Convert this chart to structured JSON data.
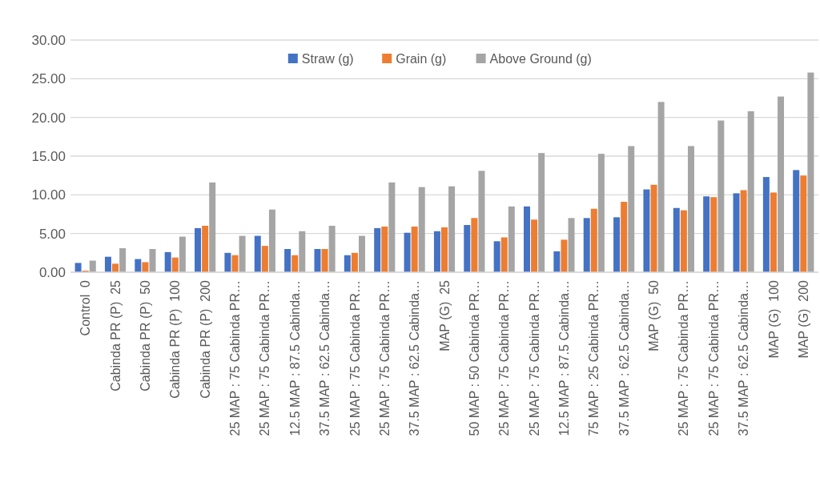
{
  "chart_data": {
    "type": "bar",
    "categories": [
      "Control  0",
      "Cabinda PR (P)  25",
      "Cabinda PR (P)  50",
      "Cabinda PR (P)  100",
      "Cabinda PR (P)  200",
      "25 MAP : 75 Cabinda PR…",
      "25 MAP : 75 Cabinda PR…",
      "12.5 MAP : 87.5 Cabinda…",
      "37.5 MAP : 62.5 Cabinda…",
      "25 MAP : 75 Cabinda PR…",
      "25 MAP : 75 Cabinda PR…",
      "37.5 MAP : 62.5 Cabinda…",
      "MAP (G)  25",
      "50 MAP : 50 Cabinda PR…",
      "25 MAP : 75 Cabinda PR…",
      "25 MAP : 75 Cabinda PR…",
      "12.5 MAP : 87.5 Cabinda…",
      "75 MAP : 25 Cabinda PR…",
      "37.5 MAP : 62.5 Cabinda…",
      "MAP (G)  50",
      "25 MAP : 75 Cabinda PR…",
      "25 MAP : 75 Cabinda PR…",
      "37.5 MAP : 62.5 Cabinda…",
      "MAP (G)  100",
      "MAP (G)  200"
    ],
    "series": [
      {
        "name": "Straw (g)",
        "color": "#4472c4",
        "values": [
          1.2,
          2.0,
          1.7,
          2.6,
          5.7,
          2.5,
          4.7,
          3.0,
          3.0,
          2.2,
          5.7,
          5.1,
          5.3,
          6.1,
          4.0,
          8.5,
          2.7,
          7.0,
          7.1,
          10.7,
          8.3,
          9.8,
          10.2,
          12.3,
          13.2
        ]
      },
      {
        "name": "Grain (g)",
        "color": "#ed7d31",
        "values": [
          0.2,
          1.1,
          1.3,
          1.9,
          6.0,
          2.2,
          3.4,
          2.2,
          3.0,
          2.5,
          5.9,
          5.9,
          5.8,
          7.0,
          4.5,
          6.8,
          4.2,
          8.2,
          9.1,
          11.3,
          8.0,
          9.7,
          10.6,
          10.3,
          12.5
        ]
      },
      {
        "name": "Above Ground (g)",
        "color": "#a5a5a5",
        "values": [
          1.5,
          3.1,
          3.0,
          4.6,
          11.6,
          4.7,
          8.1,
          5.3,
          6.0,
          4.7,
          11.6,
          11.0,
          11.1,
          13.1,
          8.5,
          15.4,
          7.0,
          15.3,
          16.3,
          22.0,
          16.3,
          19.6,
          20.8,
          22.7,
          25.8
        ]
      }
    ],
    "ylim": [
      0,
      30
    ],
    "yticks": [
      {
        "value": 0,
        "label": "0.00"
      },
      {
        "value": 5,
        "label": "5.00"
      },
      {
        "value": 10,
        "label": "10.00"
      },
      {
        "value": 15,
        "label": "15.00"
      },
      {
        "value": 20,
        "label": "20.00"
      },
      {
        "value": 25,
        "label": "25.00"
      },
      {
        "value": 30,
        "label": "30.00"
      }
    ],
    "grid": "y",
    "legend": "top"
  }
}
